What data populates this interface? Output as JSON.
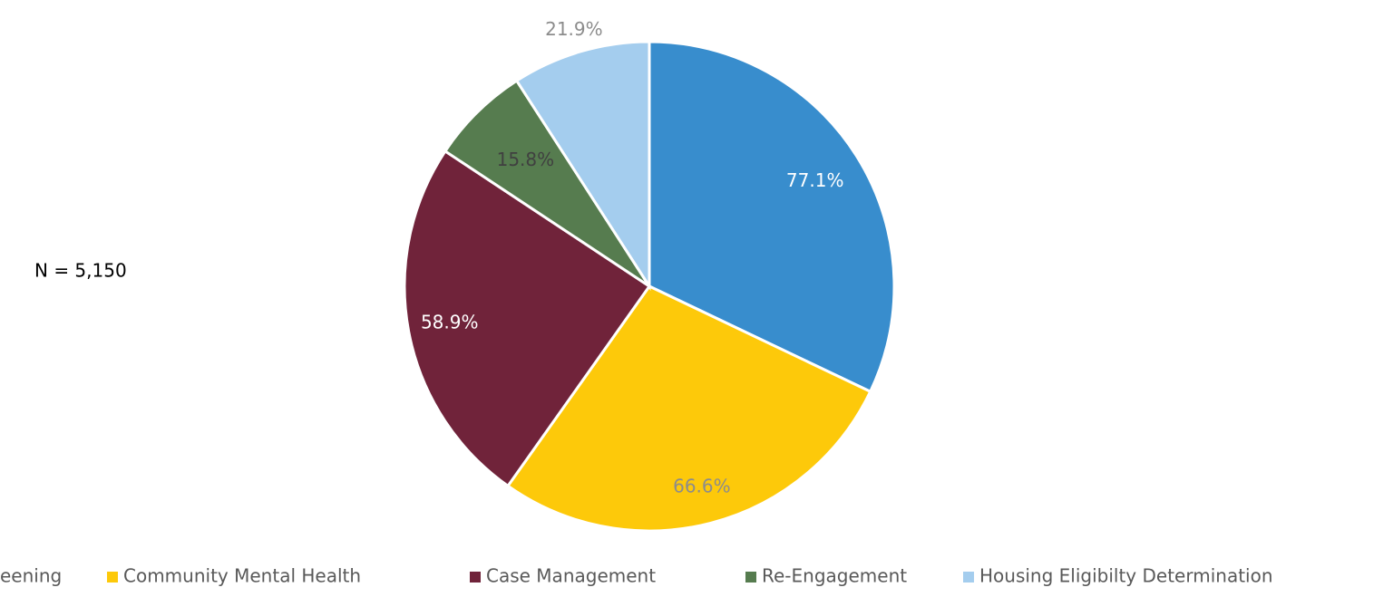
{
  "chart_data": {
    "type": "pie",
    "annotation": "N = 5,150",
    "categories": [
      "eening",
      "Community Mental Health",
      "Case Management",
      "Re-Engagement",
      "Housing Eligibilty Determination"
    ],
    "values": [
      77.1,
      66.6,
      58.9,
      15.8,
      21.9
    ],
    "value_labels": [
      "77.1%",
      "66.6%",
      "58.9%",
      "15.8%",
      "21.9%"
    ],
    "colors": [
      "#388dcd",
      "#fdc90a",
      "#70233a",
      "#567c4f",
      "#a4cdee"
    ],
    "legend": "bottom"
  }
}
